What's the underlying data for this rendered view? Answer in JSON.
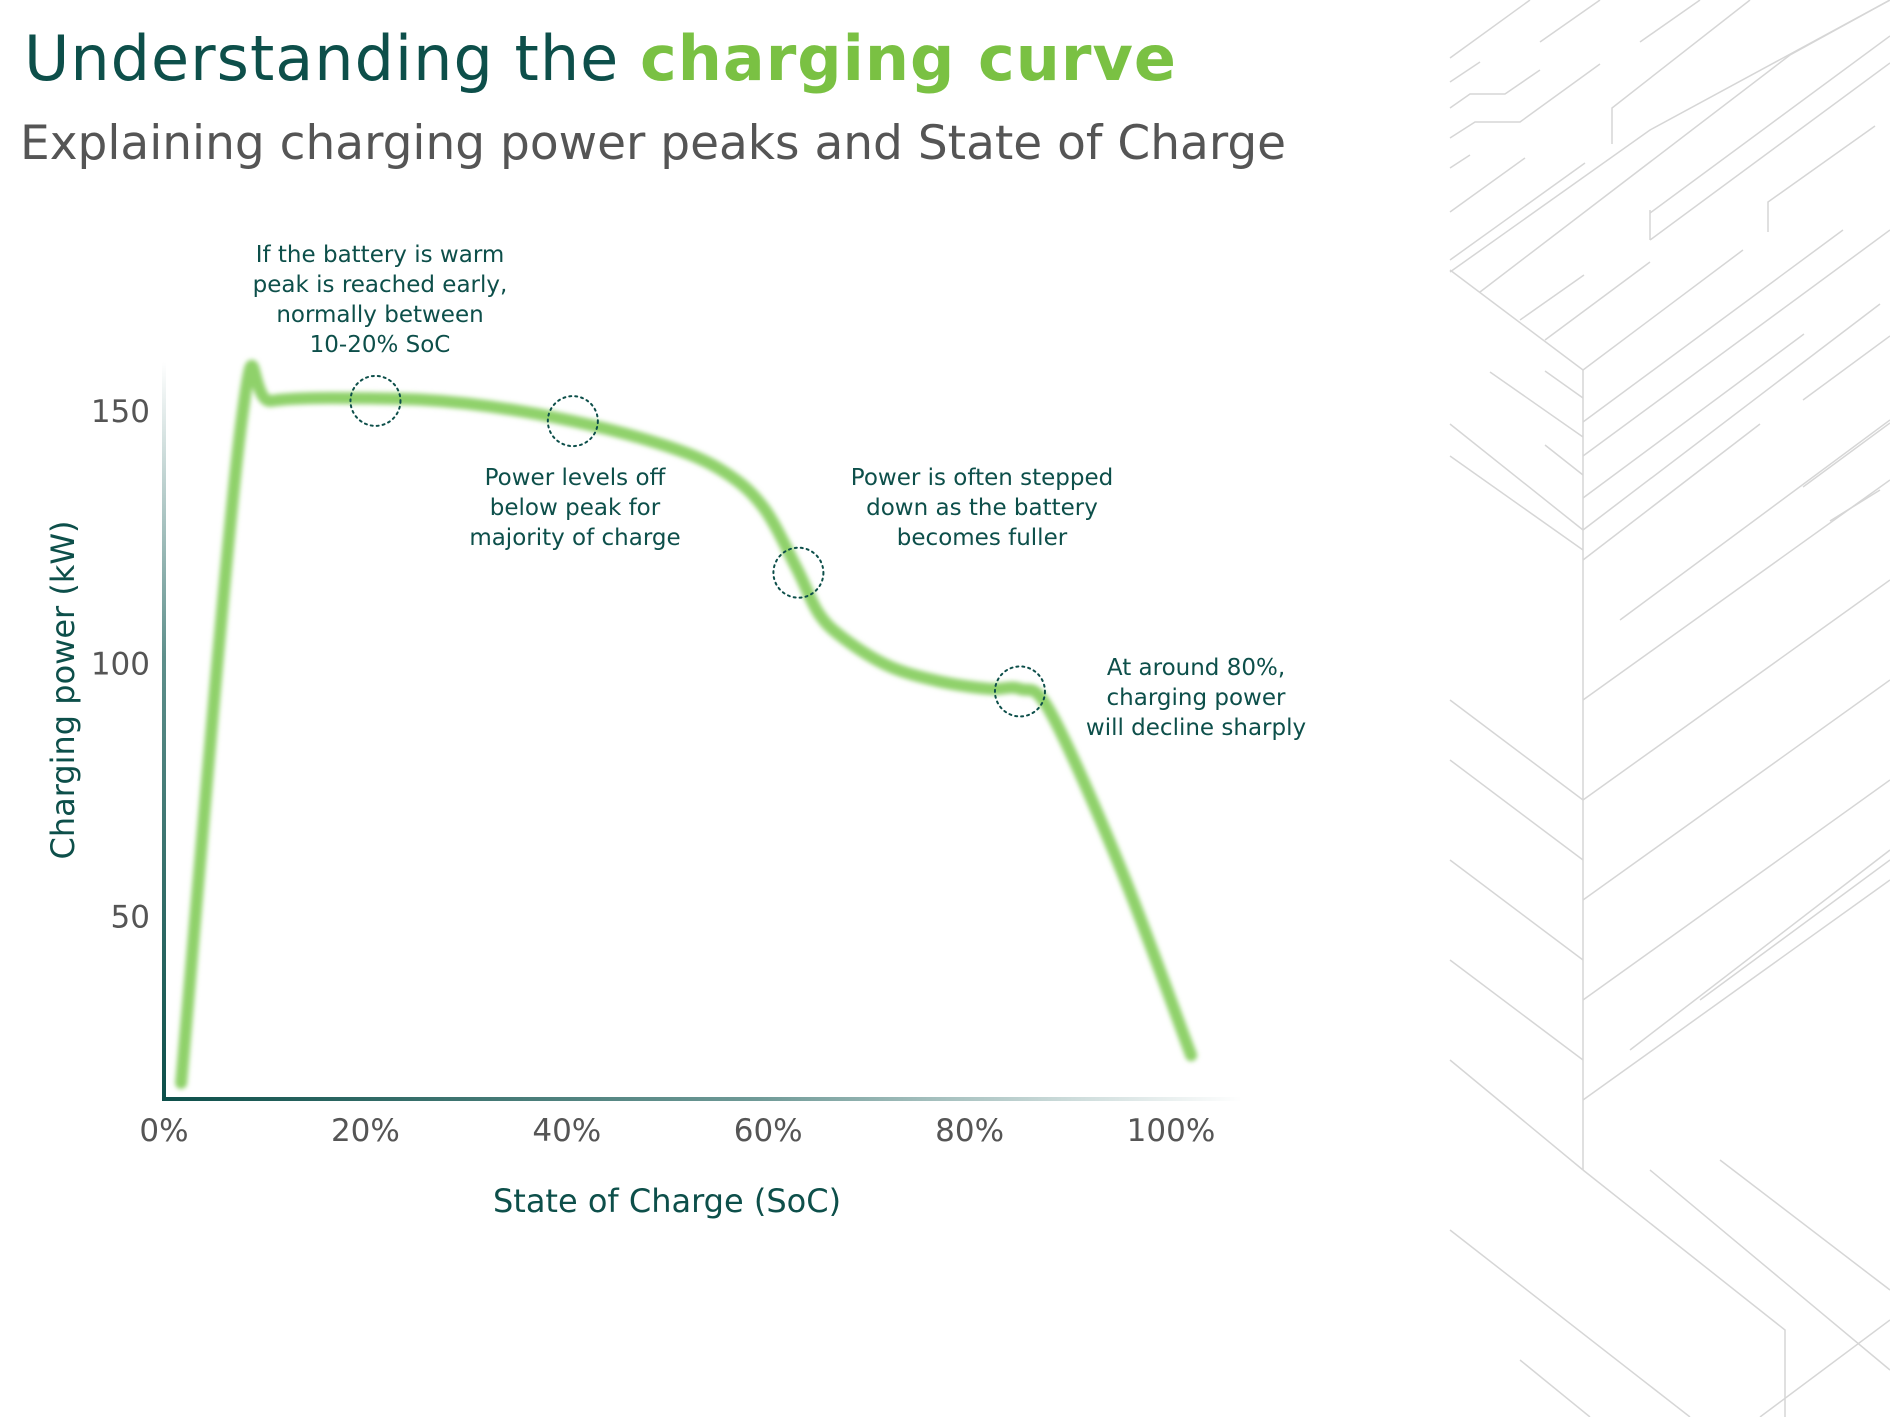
{
  "header": {
    "title_plain": "Understanding the ",
    "title_highlight": "charging curve",
    "subtitle": "Explaining charging power peaks and State of Charge"
  },
  "colors": {
    "title": "#0d4f4a",
    "highlight": "#7ac143",
    "curve": "#8fd16a",
    "axis": "#0d4f4a",
    "text_gray": "#555555"
  },
  "chart_data": {
    "type": "line",
    "title": "",
    "xlabel": "State of Charge (SoC)",
    "ylabel": "Charging power (kW)",
    "xlim": [
      0,
      107
    ],
    "ylim": [
      14,
      165
    ],
    "x_ticks": [
      0,
      20,
      40,
      60,
      80,
      100
    ],
    "x_tick_labels": [
      "0%",
      "20%",
      "40%",
      "60%",
      "80%",
      "100%"
    ],
    "y_ticks": [
      50,
      100,
      150
    ],
    "y_tick_labels": [
      "50",
      "100",
      "150"
    ],
    "grid": false,
    "legend": "none",
    "series": [
      {
        "x": [
          1.7,
          7.7,
          10.7,
          21,
          30,
          40.6,
          50,
          55.6,
          59.5,
          62.8,
          65,
          67.5,
          72,
          77,
          82,
          85,
          88,
          95,
          102
        ],
        "y": [
          17,
          148,
          152,
          152.5,
          151.5,
          148,
          143,
          138,
          131,
          119,
          110,
          105,
          99.5,
          96.5,
          95,
          95,
          90.5,
          59.5,
          22.5
        ]
      }
    ],
    "highlights": [
      {
        "x": 21,
        "y": 152
      },
      {
        "x": 40.6,
        "y": 148
      },
      {
        "x": 63,
        "y": 118
      },
      {
        "x": 85,
        "y": 94.5
      }
    ],
    "annotations": [
      {
        "lines": [
          "If the battery is warm",
          "peak is reached early,",
          "normally between",
          "10-20% SoC"
        ]
      },
      {
        "lines": [
          "Power levels off",
          "below peak for",
          "majority of charge"
        ]
      },
      {
        "lines": [
          "Power is often stepped",
          "down as the battery",
          "becomes fuller"
        ]
      },
      {
        "lines": [
          "At around 80%,",
          "charging power",
          "will decline sharply"
        ]
      }
    ]
  }
}
